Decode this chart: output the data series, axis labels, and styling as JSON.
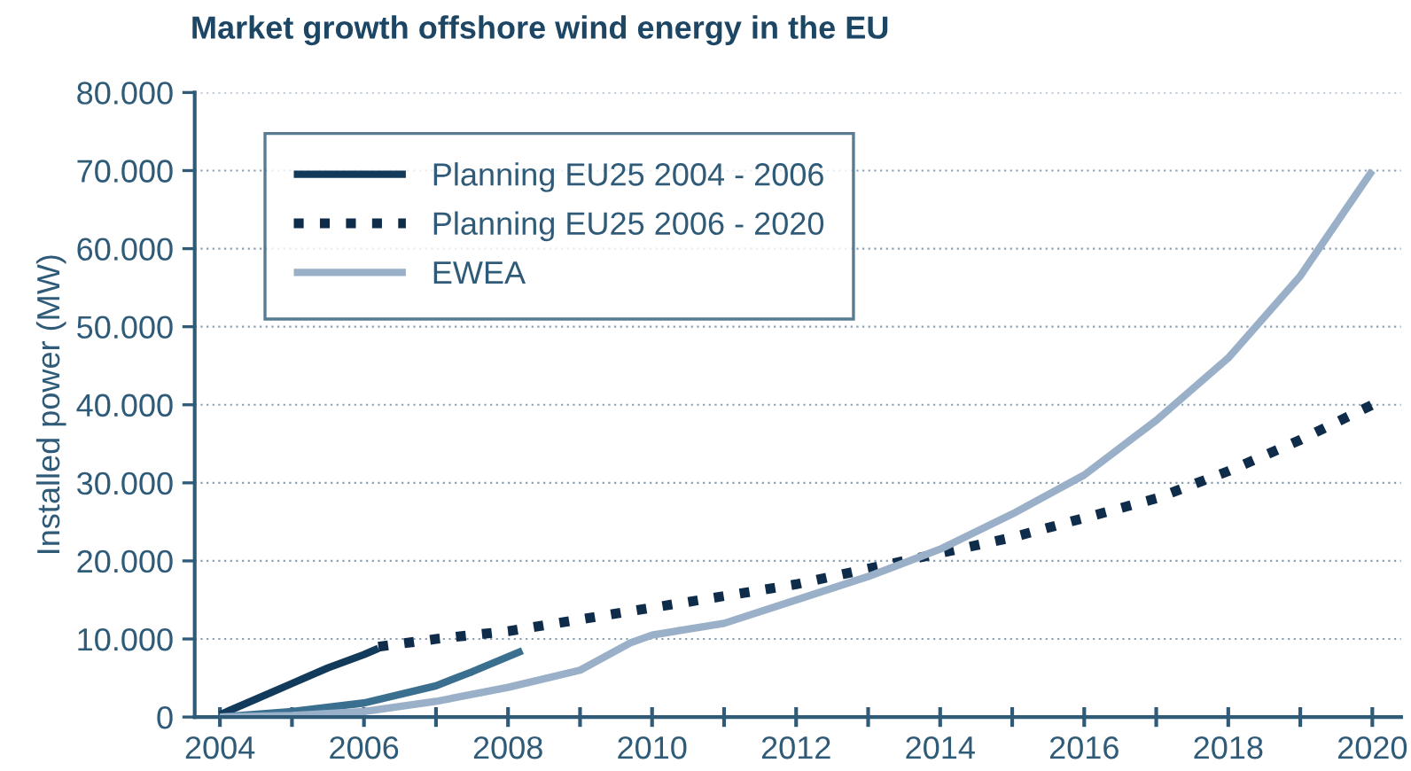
{
  "chart_data": {
    "type": "line",
    "title": "Market growth offshore wind energy in the EU",
    "ylabel": "Installed power (MW)",
    "series": [
      {
        "name": "Planning EU25 2004 - 2006",
        "color": "#123a5a",
        "line_style": "solid",
        "x": [
          2004,
          2004.5,
          2005,
          2005.5,
          2006,
          2006.2
        ],
        "values": [
          300,
          2300,
          4300,
          6300,
          8000,
          8800
        ]
      },
      {
        "name": "Planning EU25 2006 - 2020",
        "color": "#0f2d4a",
        "line_style": "dotted",
        "x": [
          2006.2,
          2007,
          2008,
          2009,
          2010,
          2011,
          2012,
          2013,
          2014,
          2015,
          2016,
          2017,
          2018,
          2019,
          2020
        ],
        "values": [
          9000,
          10000,
          11000,
          12500,
          14000,
          15500,
          17000,
          19000,
          21000,
          23000,
          25500,
          28000,
          31500,
          35500,
          40000
        ]
      },
      {
        "color": "#3a6f90",
        "line_style": "solid",
        "x": [
          2004,
          2005,
          2006,
          2007,
          2007.5,
          2008.2
        ],
        "values": [
          0,
          700,
          1800,
          4000,
          5800,
          8500
        ]
      },
      {
        "name": "EWEA",
        "color": "#9ab0c8",
        "line_style": "solid",
        "x": [
          2004,
          2005,
          2006,
          2007,
          2008,
          2009,
          2009.7,
          2010,
          2011,
          2012,
          2013,
          2014,
          2015,
          2016,
          2017,
          2018,
          2019,
          2020
        ],
        "values": [
          0,
          200,
          700,
          2000,
          3800,
          6000,
          9500,
          10500,
          12000,
          15000,
          18000,
          21500,
          26000,
          31000,
          38000,
          46000,
          56500,
          70000
        ]
      }
    ],
    "xlim": [
      2003.65,
      2020.4
    ],
    "xticks": [
      2004,
      {
        "value": 2005,
        "label": null
      },
      2006,
      {
        "value": 2007,
        "label": null
      },
      2008,
      {
        "value": 2009,
        "label": null
      },
      2010,
      {
        "value": 2011,
        "label": null
      },
      2012,
      {
        "value": 2013,
        "label": null
      },
      2014,
      {
        "value": 2015,
        "label": null
      },
      2016,
      {
        "value": 2017,
        "label": null
      },
      2018,
      {
        "value": 2019,
        "label": null
      },
      2020
    ],
    "ylim": [
      0,
      80000
    ],
    "yticks": [
      {
        "value": 0,
        "label": "0"
      },
      {
        "value": 10000,
        "label": "10.000"
      },
      {
        "value": 20000,
        "label": "20.000"
      },
      {
        "value": 30000,
        "label": "30.000"
      },
      {
        "value": 40000,
        "label": "40.000"
      },
      {
        "value": 50000,
        "label": "50.000"
      },
      {
        "value": 60000,
        "label": "60.000"
      },
      {
        "value": 70000,
        "label": "70.000"
      },
      {
        "value": 80000,
        "label": "80.000"
      }
    ],
    "grid": "y",
    "legend": "top left",
    "marker": "none"
  }
}
